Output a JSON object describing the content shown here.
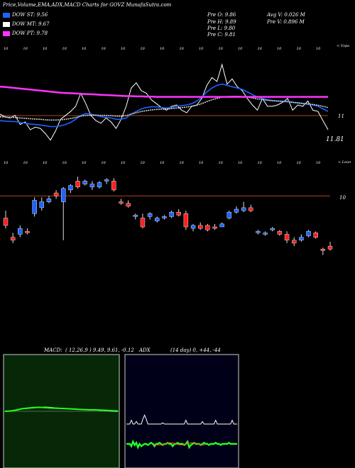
{
  "header": {
    "title": "Price,Volume,EMA,ADX,MACD Charts for GOVZ MunafaSutra.com",
    "legend": [
      {
        "label": "DOW ST: 9.56",
        "color": "#1e63ff"
      },
      {
        "label": "DOW MT: 9.67",
        "color": "#ffffff"
      },
      {
        "label": "DOW PT: 9.78",
        "color": "#ff33ff"
      }
    ],
    "stats_left": [
      "Pre  O: 9.86",
      "Pre  H: 9.89",
      "Pre  L: 9.80",
      "Pre  C: 9.81"
    ],
    "stats_right": [
      "Avg V: 0.026  M",
      "Pre  V: 0.896  M"
    ]
  },
  "colors": {
    "bull": "#1e63ff",
    "bear": "#ff2020",
    "level": "#b0441d"
  },
  "chart_data": [
    {
      "type": "line",
      "panel": "volume-ema",
      "axis_note": "< Vspa",
      "right_labels": [
        "11",
        "11.81"
      ],
      "top_tick_labels": [
        "10",
        "10",
        "10",
        "10",
        "10",
        "10",
        "10",
        "10",
        "10",
        "10",
        "10",
        "10",
        "10",
        "10",
        "10",
        "10",
        "10"
      ],
      "x": [
        1,
        2,
        3,
        4,
        5,
        6,
        7,
        8,
        9,
        10,
        11,
        12,
        13,
        14,
        15,
        16,
        17,
        18,
        19,
        20,
        21,
        22,
        23,
        24,
        25,
        26,
        27,
        28,
        29,
        30,
        31,
        32,
        33,
        34,
        35,
        36,
        37,
        38,
        39,
        40,
        41,
        42,
        43,
        44,
        45,
        46,
        47,
        48,
        49,
        50,
        51,
        52,
        53,
        54,
        55,
        56,
        57,
        58,
        59,
        60,
        61,
        62,
        63,
        64,
        65,
        66
      ],
      "series": [
        {
          "name": "price",
          "color": "#ffffff",
          "values": [
            11.6,
            11.5,
            11.45,
            11.55,
            11.2,
            11.3,
            11.0,
            11.1,
            11.05,
            10.85,
            10.6,
            10.95,
            11.4,
            11.55,
            11.7,
            11.9,
            12.4,
            12.0,
            11.55,
            11.35,
            11.25,
            11.45,
            11.3,
            11.05,
            11.4,
            11.9,
            12.6,
            12.8,
            12.5,
            12.4,
            12.15,
            12.0,
            11.85,
            11.75,
            11.9,
            11.95,
            11.75,
            11.65,
            11.9,
            11.95,
            12.2,
            12.7,
            13.0,
            12.85,
            13.5,
            12.75,
            12.95,
            12.65,
            12.5,
            12.2,
            11.95,
            11.75,
            12.2,
            11.9,
            11.9,
            11.95,
            12.05,
            12.2,
            11.75,
            11.95,
            11.9,
            12.1,
            11.75,
            11.7,
            11.35,
            11.0
          ]
        },
        {
          "name": "ema-short",
          "color": "#1e63ff",
          "values": [
            11.35,
            11.33,
            11.32,
            11.31,
            11.28,
            11.25,
            11.22,
            11.2,
            11.18,
            11.15,
            11.12,
            11.12,
            11.15,
            11.2,
            11.28,
            11.4,
            11.55,
            11.62,
            11.6,
            11.55,
            11.5,
            11.48,
            11.45,
            11.4,
            11.4,
            11.45,
            11.6,
            11.7,
            11.8,
            11.85,
            11.88,
            11.88,
            11.85,
            11.83,
            11.85,
            11.9,
            11.92,
            11.95,
            12.0,
            12.1,
            12.25,
            12.45,
            12.6,
            12.7,
            12.75,
            12.7,
            12.65,
            12.6,
            12.55,
            12.45,
            12.35,
            12.25,
            12.2,
            12.15,
            12.12,
            12.1,
            12.1,
            12.1,
            12.05,
            12.03,
            12.0,
            11.98,
            11.95,
            11.9,
            11.8,
            11.7
          ]
        },
        {
          "name": "ema-mid",
          "color": "#d0d0d0",
          "values": [
            11.5,
            11.49,
            11.48,
            11.47,
            11.45,
            11.44,
            11.42,
            11.41,
            11.4,
            11.38,
            11.37,
            11.37,
            11.38,
            11.4,
            11.43,
            11.47,
            11.52,
            11.55,
            11.56,
            11.56,
            11.55,
            11.55,
            11.54,
            11.52,
            11.52,
            11.54,
            11.6,
            11.65,
            11.7,
            11.73,
            11.76,
            11.78,
            11.79,
            11.8,
            11.81,
            11.83,
            11.85,
            11.87,
            11.9,
            11.94,
            12.0,
            12.08,
            12.15,
            12.2,
            12.25,
            12.27,
            12.28,
            12.28,
            12.27,
            12.25,
            12.22,
            12.18,
            12.16,
            12.13,
            12.11,
            12.1,
            12.08,
            12.07,
            12.05,
            12.03,
            12.01,
            11.99,
            11.97,
            11.94,
            11.9,
            11.85
          ]
        },
        {
          "name": "ema-long",
          "color": "#ff33ff",
          "values": [
            12.65,
            12.64,
            12.62,
            12.6,
            12.58,
            12.56,
            12.54,
            12.52,
            12.5,
            12.48,
            12.46,
            12.44,
            12.42,
            12.41,
            12.4,
            12.39,
            12.38,
            12.37,
            12.36,
            12.35,
            12.34,
            12.33,
            12.32,
            12.31,
            12.3,
            12.29,
            12.29,
            12.28,
            12.28,
            12.27,
            12.27,
            12.26,
            12.26,
            12.26,
            12.26,
            12.26,
            12.26,
            12.26,
            12.26,
            12.26,
            12.26,
            12.26,
            12.26,
            12.26,
            12.26,
            12.26,
            12.26,
            12.26,
            12.26,
            12.26,
            12.26,
            12.26,
            12.26,
            12.26,
            12.26,
            12.26,
            12.26,
            12.26,
            12.26,
            12.26,
            12.26,
            12.26,
            12.26,
            12.26,
            12.26,
            12.26
          ]
        }
      ]
    },
    {
      "type": "candlestick",
      "panel": "price",
      "axis_note": "< Lean",
      "right_labels": [
        "10"
      ],
      "level_line": 10.0,
      "top_tick_labels": [
        "10",
        "10",
        "10",
        "10",
        "10",
        "10",
        "10",
        "10",
        "10",
        "10",
        "10",
        "10",
        "10",
        "10",
        "10",
        "10",
        "10"
      ],
      "candles": [
        {
          "o": 9.85,
          "h": 9.9,
          "l": 9.78,
          "c": 9.8
        },
        {
          "o": 9.72,
          "h": 9.75,
          "l": 9.68,
          "c": 9.7
        },
        {
          "o": 9.74,
          "h": 9.8,
          "l": 9.72,
          "c": 9.78
        },
        {
          "o": 9.76,
          "h": 9.78,
          "l": 9.74,
          "c": 9.75
        },
        {
          "o": 9.88,
          "h": 9.99,
          "l": 9.86,
          "c": 9.97
        },
        {
          "o": 9.92,
          "h": 9.99,
          "l": 9.9,
          "c": 9.96
        },
        {
          "o": 9.96,
          "h": 10.0,
          "l": 9.95,
          "c": 9.98
        },
        {
          "o": 10.02,
          "h": 10.04,
          "l": 9.98,
          "c": 10.0
        },
        {
          "o": 9.96,
          "h": 10.06,
          "l": 9.7,
          "c": 10.05
        },
        {
          "o": 10.04,
          "h": 10.08,
          "l": 10.02,
          "c": 10.07
        },
        {
          "o": 10.1,
          "h": 10.13,
          "l": 10.05,
          "c": 10.06
        },
        {
          "o": 10.08,
          "h": 10.11,
          "l": 10.07,
          "c": 10.1
        },
        {
          "o": 10.06,
          "h": 10.1,
          "l": 10.04,
          "c": 10.08
        },
        {
          "o": 10.06,
          "h": 10.1,
          "l": 10.05,
          "c": 10.09
        },
        {
          "o": 10.1,
          "h": 10.12,
          "l": 10.08,
          "c": 10.11
        },
        {
          "o": 10.1,
          "h": 10.12,
          "l": 10.03,
          "c": 10.04
        },
        {
          "o": 9.96,
          "h": 9.98,
          "l": 9.94,
          "c": 9.95
        },
        {
          "o": 9.95,
          "h": 9.97,
          "l": 9.92,
          "c": 9.93
        },
        {
          "o": 9.86,
          "h": 9.88,
          "l": 9.84,
          "c": 9.87
        },
        {
          "o": 9.85,
          "h": 9.88,
          "l": 9.78,
          "c": 9.79
        },
        {
          "o": 9.86,
          "h": 9.89,
          "l": 9.84,
          "c": 9.88
        },
        {
          "o": 9.83,
          "h": 9.86,
          "l": 9.82,
          "c": 9.85
        },
        {
          "o": 9.85,
          "h": 9.87,
          "l": 9.84,
          "c": 9.86
        },
        {
          "o": 9.86,
          "h": 9.9,
          "l": 9.85,
          "c": 9.89
        },
        {
          "o": 9.89,
          "h": 9.91,
          "l": 9.86,
          "c": 9.87
        },
        {
          "o": 9.88,
          "h": 9.9,
          "l": 9.77,
          "c": 9.79
        },
        {
          "o": 9.78,
          "h": 9.81,
          "l": 9.76,
          "c": 9.8
        },
        {
          "o": 9.8,
          "h": 9.82,
          "l": 9.77,
          "c": 9.78
        },
        {
          "o": 9.8,
          "h": 9.81,
          "l": 9.76,
          "c": 9.77
        },
        {
          "o": 9.79,
          "h": 9.81,
          "l": 9.77,
          "c": 9.78
        },
        {
          "o": 9.79,
          "h": 9.82,
          "l": 9.79,
          "c": 9.81
        },
        {
          "o": 9.85,
          "h": 9.9,
          "l": 9.84,
          "c": 9.89
        },
        {
          "o": 9.89,
          "h": 9.93,
          "l": 9.88,
          "c": 9.91
        },
        {
          "o": 9.9,
          "h": 9.96,
          "l": 9.89,
          "c": 9.92
        },
        {
          "o": 9.92,
          "h": 9.94,
          "l": 9.89,
          "c": 9.9
        },
        {
          "o": 9.76,
          "h": 9.77,
          "l": 9.74,
          "c": 9.76
        },
        {
          "o": 9.74,
          "h": 9.76,
          "l": 9.73,
          "c": 9.75
        },
        {
          "o": 9.77,
          "h": 9.79,
          "l": 9.76,
          "c": 9.78
        },
        {
          "o": 9.76,
          "h": 9.77,
          "l": 9.73,
          "c": 9.74
        },
        {
          "o": 9.74,
          "h": 9.76,
          "l": 9.68,
          "c": 9.7
        },
        {
          "o": 9.7,
          "h": 9.72,
          "l": 9.66,
          "c": 9.68
        },
        {
          "o": 9.7,
          "h": 9.74,
          "l": 9.69,
          "c": 9.72
        },
        {
          "o": 9.73,
          "h": 9.77,
          "l": 9.72,
          "c": 9.76
        },
        {
          "o": 9.75,
          "h": 9.76,
          "l": 9.71,
          "c": 9.72
        },
        {
          "o": 9.64,
          "h": 9.65,
          "l": 9.6,
          "c": 9.63
        },
        {
          "o": 9.66,
          "h": 9.69,
          "l": 9.63,
          "c": 9.64
        }
      ]
    },
    {
      "type": "line",
      "panel": "macd",
      "title": "MACD:",
      "params": "( 12,26,9 ) 9.49, 9.61, -0.12",
      "series": [
        {
          "color": "#ffffff",
          "values": [
            0,
            0.02,
            0.05,
            0.08,
            0.1,
            0.12,
            0.13,
            0.15,
            0.14,
            0.12,
            0.1,
            0.09,
            0.08,
            0.07,
            0.06,
            0.05,
            0.04,
            0.03,
            0.02,
            0.0,
            -0.01
          ]
        },
        {
          "color": "#22ff22",
          "values": [
            0,
            0.01,
            0.04,
            0.09,
            0.11,
            0.13,
            0.14,
            0.13,
            0.12,
            0.11,
            0.1,
            0.09,
            0.08,
            0.07,
            0.06,
            0.05,
            0.05,
            0.04,
            0.03,
            0.02,
            0.01
          ]
        }
      ]
    },
    {
      "type": "line",
      "panel": "adx",
      "title": "ADX",
      "params": "(14 day) 0, +44, -44",
      "series": [
        {
          "color": "#ffffff",
          "values": [
            44,
            44,
            44,
            50,
            44,
            44,
            48,
            44,
            44,
            44,
            52,
            58,
            52,
            44,
            44,
            44,
            44,
            44,
            44,
            44,
            44,
            44,
            46,
            44,
            44,
            44,
            44,
            44,
            44,
            44,
            44,
            44,
            44,
            44,
            44,
            44,
            50,
            44,
            44,
            44,
            44,
            44,
            44,
            44,
            44,
            44,
            48,
            44,
            44,
            44,
            44,
            44,
            44,
            44,
            50,
            44,
            44,
            44,
            44,
            44,
            44,
            44,
            44,
            44,
            50,
            44,
            44,
            44
          ]
        },
        {
          "color": "#22ff22",
          "values": [
            0,
            0,
            0,
            -2,
            2,
            -1,
            1,
            -3,
            0,
            -2,
            -1,
            0,
            0,
            -1,
            0,
            1,
            0,
            -2,
            0,
            0,
            1,
            0,
            -1,
            0,
            0,
            1,
            0,
            0,
            -2,
            0,
            0,
            1,
            0,
            0,
            0,
            -1,
            0,
            2,
            -3,
            -1,
            0,
            1,
            0,
            0,
            0,
            -1,
            0,
            1,
            0,
            0,
            -1,
            0,
            0,
            0,
            1,
            0,
            0,
            -1,
            0,
            0,
            0,
            0,
            1,
            0,
            0,
            0,
            0,
            0
          ]
        }
      ]
    }
  ]
}
